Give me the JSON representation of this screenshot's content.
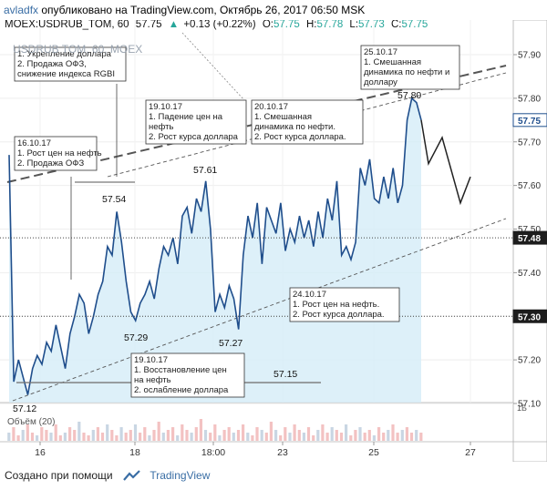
{
  "header": {
    "author": "avladfx",
    "published_text": "опубликовано на TradingView.com, Октябрь 26, 2017 06:50 MSK",
    "symbol_line": "MOEX:USDRUB_TOM, 60",
    "last": "57.75",
    "change_arrow": "▲",
    "change": "+0.13 (+0.22%)",
    "o_label": "O:",
    "o_val": "57.75",
    "h_label": "H:",
    "h_val": "57.78",
    "l_label": "L:",
    "l_val": "57.73",
    "c_label": "C:",
    "c_val": "57.75"
  },
  "watermark": "USDRUB TOM, 60, MOEX",
  "volume_label": "Объём (20)",
  "volume_axis_label": "1Б",
  "colors": {
    "price_line": "#1f4e8c",
    "area_fill": "#d4ecf8",
    "volume_up": "#f3c2c2",
    "volume_down": "#c9d6e3",
    "arrow_up": "#26a69a"
  },
  "footer": {
    "created_with": "Создано при помощи",
    "brand": "TradingView"
  },
  "chart_data": {
    "type": "line",
    "title": "USDRUB TOM, 60, MOEX",
    "ylim": [
      57.1,
      57.9
    ],
    "yticks": [
      "57.90",
      "57.80",
      "57.70",
      "57.60",
      "57.50",
      "57.40",
      "57.30",
      "57.20",
      "57.10"
    ],
    "xticks": [
      "16",
      "18",
      "18:00",
      "23",
      "25",
      "27"
    ],
    "price_tags": [
      "57.75",
      "57.48",
      "57.30"
    ],
    "series": [
      {
        "values": [
          57.67,
          57.15,
          57.2,
          57.16,
          57.12,
          57.18,
          57.21,
          57.19,
          57.24,
          57.22,
          57.28,
          57.23,
          57.18,
          57.26,
          57.3,
          57.35,
          57.33,
          57.26,
          57.3,
          57.35,
          57.38,
          57.46,
          57.44,
          57.54,
          57.47,
          57.38,
          57.31,
          57.29,
          57.33,
          57.35,
          57.38,
          57.34,
          57.41,
          57.46,
          57.44,
          57.48,
          57.42,
          57.53,
          57.55,
          57.49,
          57.57,
          57.54,
          57.61,
          57.5,
          57.31,
          57.35,
          57.32,
          57.37,
          57.34,
          57.27,
          57.44,
          57.53,
          57.48,
          57.56,
          57.42,
          57.55,
          57.52,
          57.49,
          57.56,
          57.45,
          57.5,
          57.47,
          57.53,
          57.48,
          57.52,
          57.46,
          57.54,
          57.48,
          57.57,
          57.52,
          57.61,
          57.44,
          57.46,
          57.43,
          57.47,
          57.64,
          57.6,
          57.66,
          57.57,
          57.56,
          57.62,
          57.57,
          57.64,
          57.56,
          57.6,
          57.75,
          57.8,
          57.79,
          57.75
        ]
      },
      {
        "name": "forecast",
        "values": [
          57.75,
          57.65,
          57.71,
          57.56,
          57.62
        ]
      }
    ],
    "value_labels": [
      {
        "text": "57.12",
        "value": 57.12
      },
      {
        "text": "57.54",
        "value": 57.54
      },
      {
        "text": "57.29",
        "value": 57.29
      },
      {
        "text": "57.61",
        "value": 57.61
      },
      {
        "text": "57.27",
        "value": 57.27
      },
      {
        "text": "57.15",
        "value": 57.15
      },
      {
        "text": "57.80",
        "value": 57.8
      }
    ],
    "annotations": [
      {
        "lines": [
          "1. Укрепление доллара",
          "2. Продажа ОФЗ,",
          "снижение индекса RGBI"
        ]
      },
      {
        "lines": [
          "16.10.17",
          "1. Рост цен на нефть",
          "2. Продажа ОФЗ"
        ]
      },
      {
        "lines": [
          "19.10.17",
          "1. Падение цен на",
          "нефть",
          "2. Рост курса доллара"
        ]
      },
      {
        "lines": [
          "20.10.17",
          "1. Смешанная",
          "динамика по нефти.",
          "2. Рост курса доллара."
        ]
      },
      {
        "lines": [
          "25.10.17",
          "1. Смешанная",
          "динамика по нефти и",
          "доллару"
        ]
      },
      {
        "lines": [
          "24.10.17",
          "1. Рост цен на нефть.",
          "2. Рост курса доллара."
        ]
      },
      {
        "lines": [
          "19.10.17",
          "1. Восстановление цен",
          "на нефть",
          "2. ослабление доллара"
        ]
      }
    ],
    "volume": [
      3,
      5,
      2,
      4,
      6,
      3,
      2,
      5,
      4,
      3,
      6,
      2,
      3,
      5,
      4,
      7,
      3,
      2,
      4,
      5,
      3,
      6,
      4,
      2,
      5,
      3,
      4,
      6,
      3,
      5,
      2,
      4,
      7,
      3,
      4,
      5,
      2,
      6,
      4,
      3,
      5,
      8,
      4,
      3,
      6,
      2,
      4,
      5,
      3,
      4,
      6,
      3,
      2,
      5,
      4,
      3,
      7,
      4,
      2,
      5,
      3,
      6,
      4,
      3,
      5,
      2,
      4,
      6,
      3,
      5,
      4,
      3,
      6,
      2,
      4,
      5,
      3,
      4,
      2,
      5,
      3,
      4,
      6,
      3,
      4,
      5,
      3,
      4,
      3
    ]
  }
}
